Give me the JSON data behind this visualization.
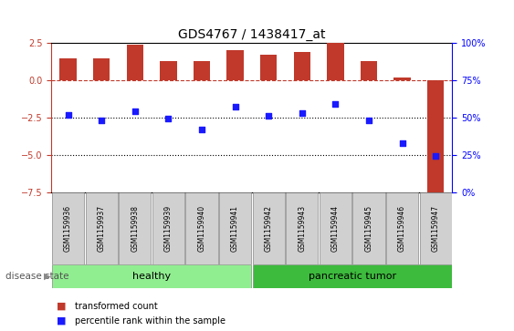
{
  "title": "GDS4767 / 1438417_at",
  "samples": [
    "GSM1159936",
    "GSM1159937",
    "GSM1159938",
    "GSM1159939",
    "GSM1159940",
    "GSM1159941",
    "GSM1159942",
    "GSM1159943",
    "GSM1159944",
    "GSM1159945",
    "GSM1159946",
    "GSM1159947"
  ],
  "bar_values": [
    1.5,
    1.5,
    2.4,
    1.3,
    1.3,
    2.0,
    1.7,
    1.9,
    2.5,
    1.3,
    0.2,
    -7.5
  ],
  "scatter_values": [
    -2.3,
    -2.7,
    -2.1,
    -2.6,
    -3.3,
    -1.8,
    -2.4,
    -2.2,
    -1.6,
    -2.7,
    -4.2,
    -5.1
  ],
  "bar_color": "#c0392b",
  "scatter_color": "#1a1aff",
  "left_ylim": [
    -7.5,
    2.5
  ],
  "left_yticks": [
    -7.5,
    -5.0,
    -2.5,
    0.0,
    2.5
  ],
  "right_ylim": [
    0,
    100
  ],
  "right_yticks": [
    0,
    25,
    50,
    75,
    100
  ],
  "right_yticklabels": [
    "0%",
    "25%",
    "50%",
    "75%",
    "100%"
  ],
  "hline_y": 0.0,
  "dotted_lines": [
    -2.5,
    -5.0
  ],
  "healthy_count": 6,
  "healthy_label": "healthy",
  "tumor_label": "pancreatic tumor",
  "healthy_color": "#90ee90",
  "tumor_color": "#3dbb3d",
  "disease_state_label": "disease state",
  "legend_bar_label": "transformed count",
  "legend_scatter_label": "percentile rank within the sample",
  "bar_width": 0.5,
  "group_box_color": "#d0d0d0",
  "tick_fontsize": 7,
  "title_fontsize": 10
}
